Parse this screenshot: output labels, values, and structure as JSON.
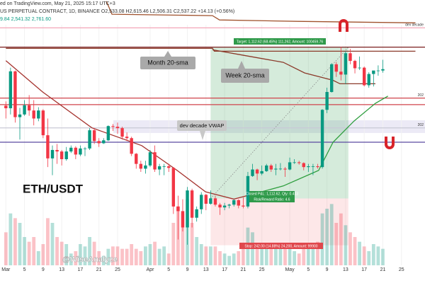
{
  "header": {
    "source": "ed on TradingView.com, May 21, 2025 15:17 UTC+3",
    "symbol": "US PERPETUAL CONTRACT, 1D, BINANCE  O2,533.08 H2,615.46 L2,506.31 C2,537.22 +14.13 (+0.56%)",
    "indicator": "9.84 2,541.32 2,761.60"
  },
  "chart_data": {
    "type": "candlestick",
    "title": "ETH/USDT",
    "watermark": "@WiseAnalyze",
    "log": true,
    "ylim": [
      1290,
      3220
    ],
    "categories": [
      "Mar",
      null,
      null,
      null,
      "5",
      null,
      null,
      null,
      "9",
      null,
      null,
      null,
      "13",
      null,
      null,
      null,
      "17",
      null,
      null,
      null,
      "21",
      null,
      null,
      null,
      "25",
      null,
      null,
      null,
      null,
      null,
      null,
      "Apr",
      null,
      null,
      null,
      "5",
      null,
      null,
      null,
      "9",
      null,
      null,
      null,
      "13",
      null,
      null,
      null,
      "17",
      null,
      null,
      null,
      "21",
      null,
      null,
      null,
      "25",
      null,
      null,
      null,
      null,
      null,
      "May",
      null,
      null,
      null,
      "5",
      null,
      null,
      null,
      "9",
      null,
      null,
      null,
      "13",
      null,
      null,
      null,
      "17",
      null,
      null,
      null,
      "21",
      null,
      null,
      null,
      "25",
      null
    ],
    "ohlc": [
      [
        2237,
        2270,
        2140,
        2217
      ],
      [
        2217,
        2550,
        2170,
        2518
      ],
      [
        2518,
        2525,
        2110,
        2150
      ],
      [
        2150,
        2220,
        1990,
        2170
      ],
      [
        2170,
        2280,
        2160,
        2240
      ],
      [
        2240,
        2320,
        2160,
        2200
      ],
      [
        2200,
        2280,
        2090,
        2140
      ],
      [
        2140,
        2225,
        2120,
        2200
      ],
      [
        2200,
        2210,
        2000,
        2020
      ],
      [
        2020,
        2140,
        1810,
        1865
      ],
      [
        1865,
        1950,
        1760,
        1920
      ],
      [
        1920,
        1960,
        1830,
        1910
      ],
      [
        1910,
        1920,
        1820,
        1860
      ],
      [
        1860,
        1940,
        1850,
        1910
      ],
      [
        1910,
        1950,
        1900,
        1935
      ],
      [
        1935,
        1945,
        1860,
        1890
      ],
      [
        1890,
        1950,
        1880,
        1930
      ],
      [
        1930,
        1940,
        1880,
        1930
      ],
      [
        1930,
        2070,
        1920,
        2055
      ],
      [
        2055,
        2070,
        1960,
        1980
      ],
      [
        1980,
        2000,
        1940,
        1965
      ],
      [
        1965,
        2000,
        1960,
        1985
      ],
      [
        1985,
        2090,
        1980,
        2085
      ],
      [
        2085,
        2100,
        2050,
        2080
      ],
      [
        2080,
        2110,
        2030,
        2070
      ],
      [
        2070,
        2080,
        1990,
        2010
      ],
      [
        2010,
        2040,
        1980,
        2000
      ],
      [
        2000,
        2010,
        1880,
        1895
      ],
      [
        1895,
        1900,
        1800,
        1830
      ],
      [
        1830,
        1850,
        1780,
        1800
      ],
      [
        1800,
        1850,
        1770,
        1820
      ],
      [
        1820,
        1920,
        1810,
        1905
      ],
      [
        1905,
        1950,
        1780,
        1795
      ],
      [
        1795,
        1830,
        1760,
        1815
      ],
      [
        1815,
        1830,
        1760,
        1815
      ],
      [
        1815,
        1830,
        1780,
        1805
      ],
      [
        1805,
        1810,
        1540,
        1580
      ],
      [
        1580,
        1640,
        1410,
        1555
      ],
      [
        1555,
        1620,
        1450,
        1470
      ],
      [
        1470,
        1690,
        1385,
        1670
      ],
      [
        1670,
        1680,
        1470,
        1520
      ],
      [
        1520,
        1580,
        1500,
        1565
      ],
      [
        1565,
        1660,
        1540,
        1645
      ],
      [
        1645,
        1650,
        1560,
        1595
      ],
      [
        1595,
        1670,
        1590,
        1625
      ],
      [
        1625,
        1640,
        1580,
        1590
      ],
      [
        1590,
        1600,
        1535,
        1575
      ],
      [
        1575,
        1600,
        1560,
        1585
      ],
      [
        1585,
        1595,
        1570,
        1590
      ],
      [
        1590,
        1620,
        1580,
        1615
      ],
      [
        1615,
        1620,
        1570,
        1585
      ],
      [
        1585,
        1630,
        1570,
        1580
      ],
      [
        1580,
        1780,
        1570,
        1755
      ],
      [
        1755,
        1830,
        1750,
        1795
      ],
      [
        1795,
        1800,
        1730,
        1770
      ],
      [
        1770,
        1820,
        1760,
        1785
      ],
      [
        1785,
        1830,
        1780,
        1820
      ],
      [
        1820,
        1830,
        1780,
        1795
      ],
      [
        1795,
        1830,
        1760,
        1800
      ],
      [
        1800,
        1835,
        1790,
        1800
      ],
      [
        1800,
        1810,
        1750,
        1795
      ],
      [
        1795,
        1870,
        1790,
        1840
      ],
      [
        1840,
        1860,
        1830,
        1840
      ],
      [
        1840,
        1850,
        1825,
        1835
      ],
      [
        1835,
        1840,
        1790,
        1810
      ],
      [
        1810,
        1830,
        1780,
        1815
      ],
      [
        1815,
        1830,
        1760,
        1815
      ],
      [
        1815,
        1830,
        1800,
        1810
      ],
      [
        1810,
        2210,
        1800,
        2205
      ],
      [
        2205,
        2380,
        2180,
        2345
      ],
      [
        2345,
        2590,
        2340,
        2580
      ],
      [
        2580,
        2600,
        2470,
        2515
      ],
      [
        2515,
        2740,
        2440,
        2490
      ],
      [
        2490,
        2700,
        2410,
        2680
      ],
      [
        2680,
        2720,
        2580,
        2610
      ],
      [
        2610,
        2620,
        2500,
        2545
      ],
      [
        2545,
        2650,
        2530,
        2550
      ],
      [
        2550,
        2560,
        2390,
        2400
      ],
      [
        2400,
        2510,
        2380,
        2495
      ],
      [
        2495,
        2520,
        2390,
        2525
      ],
      [
        2525,
        2570,
        2480,
        2525
      ],
      [
        2525,
        2620,
        2506,
        2537
      ],
      null,
      null,
      null,
      null,
      null
    ],
    "volume": [
      14,
      22,
      20,
      18,
      12,
      10,
      12,
      6,
      9,
      20,
      18,
      12,
      10,
      9,
      5,
      6,
      9,
      8,
      12,
      10,
      6,
      4,
      7,
      8,
      8,
      7,
      7,
      9,
      7,
      6,
      8,
      9,
      10,
      7,
      8,
      5,
      18,
      25,
      22,
      28,
      18,
      12,
      9,
      8,
      8,
      8,
      6,
      5,
      4,
      5,
      6,
      7,
      16,
      14,
      9,
      8,
      7,
      7,
      8,
      7,
      7,
      9,
      6,
      5,
      7,
      7,
      9,
      10,
      22,
      24,
      26,
      18,
      22,
      17,
      14,
      12,
      10,
      8,
      6,
      9,
      8,
      7,
      null,
      null,
      null,
      null,
      null
    ],
    "vlim": [
      0,
      30
    ],
    "up_color": "#089981",
    "down_color": "#f23645",
    "lines": [
      {
        "color": "#a5332e",
        "x": [
          0,
          7.9,
          18.5,
          29.2,
          36.8,
          42.9,
          49,
          52
        ],
        "values": [
          2612,
          2345,
          2072,
          1949,
          1789,
          1662,
          1621,
          1641
        ]
      },
      {
        "color": "#2e9e3e",
        "x": [
          52,
          59.6,
          67.2,
          70.3,
          74.8,
          79.4,
          82.1
        ],
        "values": [
          1641,
          1696,
          1789,
          1972,
          2121,
          2255,
          2312
        ]
      },
      {
        "color": "#8b3a2a",
        "x": [
          0,
          44.4,
          44.8,
          88
        ],
        "values": [
          2726,
          2726,
          2699,
          2699
        ]
      },
      {
        "color": "#8b3a2a",
        "x": [
          44.4,
          51.2,
          59.6,
          64.2,
          70.3,
          71.8,
          79.4
        ],
        "values": [
          2712,
          2660,
          2597,
          2504,
          2441,
          2412,
          2412
        ]
      },
      {
        "color": "#a0522d",
        "x": [
          21.6,
          22.8,
          44.4,
          45.9,
          62.7,
          88
        ],
        "values": [
          3205,
          3066,
          3051,
          3006,
          2991,
          2976
        ]
      }
    ],
    "levels": [
      {
        "value": 2925,
        "color": "#f4a6b8",
        "label": "dev decade"
      },
      {
        "value": 2737,
        "color": "#7a1f1f"
      },
      {
        "value": 2296,
        "color": "#d0454c",
        "label": "202"
      },
      {
        "value": 2245,
        "color": "#d0454c"
      },
      {
        "value": 2072,
        "color": "#c9c9d6",
        "label": "202"
      },
      {
        "value": 1972,
        "color": "#5b4aa0"
      }
    ],
    "position": {
      "start": 44,
      "end": 73.6,
      "entry": 1624.38,
      "target": 2737,
      "stop": 1382.38,
      "target_label": "Target: 1,112.62 (68.45%) 111,262, Amount: 100459.76",
      "pnl_label": "Closed P&L: 1,112.62, Qty: 0.413",
      "rr_label": "Risk/Reward Ratio: 4.6",
      "stop_label": "Stop: 242.00 (14.88%) 24,200, Amount: 99900"
    },
    "annotations": [
      "Month 20-sma",
      "Week 20-sma",
      "dev decade VWAP"
    ]
  }
}
